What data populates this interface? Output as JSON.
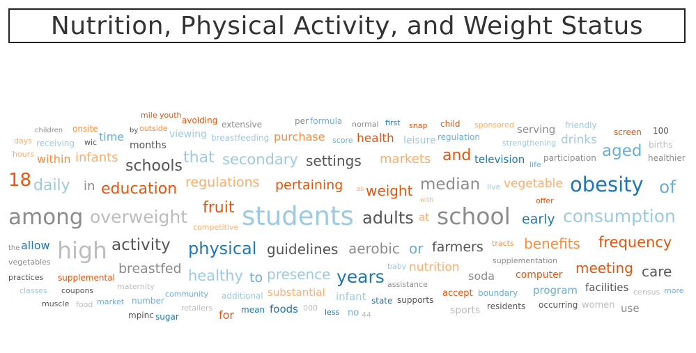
{
  "title": "Nutrition, Physical Activity, and Weight Status",
  "palette": {
    "dark_blue": "#1f77b4",
    "mid_blue": "#6baed6",
    "light_blue": "#9ecae1",
    "dark_orange": "#e6550d",
    "orange": "#fd8d3c",
    "light_orange": "#fdae6b",
    "dark_gray": "#555555",
    "gray": "#8c8c8c",
    "light_gray": "#bdbdbd"
  },
  "words": [
    {
      "text": "mile",
      "color": "dark_orange"
    },
    {
      "text": "youth",
      "color": "dark_orange"
    },
    {
      "text": "avoiding",
      "color": "dark_orange"
    },
    {
      "text": "extensive",
      "color": "gray"
    },
    {
      "text": "per",
      "color": "gray"
    },
    {
      "text": "formula",
      "color": "mid_blue"
    },
    {
      "text": "normal",
      "color": "gray"
    },
    {
      "text": "first",
      "color": "dark_blue"
    },
    {
      "text": "snap",
      "color": "dark_orange"
    },
    {
      "text": "child",
      "color": "dark_orange"
    },
    {
      "text": "sponsored",
      "color": "light_orange"
    },
    {
      "text": "friendly",
      "color": "light_blue"
    },
    {
      "text": "children",
      "color": "gray"
    },
    {
      "text": "onsite",
      "color": "orange"
    },
    {
      "text": "by",
      "color": "dark_gray"
    },
    {
      "text": "outside",
      "color": "orange"
    },
    {
      "text": "viewing",
      "color": "light_blue"
    },
    {
      "text": "breastfeeding",
      "color": "light_blue"
    },
    {
      "text": "purchase",
      "color": "orange"
    },
    {
      "text": "score",
      "color": "mid_blue"
    },
    {
      "text": "health",
      "color": "dark_orange"
    },
    {
      "text": "leisure",
      "color": "light_blue"
    },
    {
      "text": "regulation",
      "color": "mid_blue"
    },
    {
      "text": "serving",
      "color": "gray"
    },
    {
      "text": "screen",
      "color": "dark_orange"
    },
    {
      "text": "100",
      "color": "dark_gray"
    },
    {
      "text": "days",
      "color": "light_orange"
    },
    {
      "text": "receiving",
      "color": "light_blue"
    },
    {
      "text": "wic",
      "color": "dark_gray"
    },
    {
      "text": "time",
      "color": "mid_blue"
    },
    {
      "text": "months",
      "color": "dark_gray"
    },
    {
      "text": "strengthening",
      "color": "light_blue"
    },
    {
      "text": "drinks",
      "color": "light_blue"
    },
    {
      "text": "births",
      "color": "light_gray"
    },
    {
      "text": "hours",
      "color": "light_orange"
    },
    {
      "text": "within",
      "color": "orange"
    },
    {
      "text": "infants",
      "color": "light_orange"
    },
    {
      "text": "that",
      "color": "light_blue"
    },
    {
      "text": "secondary",
      "color": "light_blue"
    },
    {
      "text": "settings",
      "color": "dark_gray"
    },
    {
      "text": "markets",
      "color": "light_orange"
    },
    {
      "text": "and",
      "color": "dark_orange"
    },
    {
      "text": "aged",
      "color": "mid_blue"
    },
    {
      "text": "participation",
      "color": "gray"
    },
    {
      "text": "healthier",
      "color": "gray"
    },
    {
      "text": "schools",
      "color": "dark_gray"
    },
    {
      "text": "television",
      "color": "dark_blue"
    },
    {
      "text": "life",
      "color": "mid_blue"
    },
    {
      "text": "18",
      "color": "dark_orange"
    },
    {
      "text": "daily",
      "color": "light_blue"
    },
    {
      "text": "in",
      "color": "gray"
    },
    {
      "text": "education",
      "color": "dark_orange"
    },
    {
      "text": "regulations",
      "color": "light_orange"
    },
    {
      "text": "pertaining",
      "color": "dark_orange"
    },
    {
      "text": "as",
      "color": "light_orange"
    },
    {
      "text": "weight",
      "color": "dark_orange"
    },
    {
      "text": "median",
      "color": "gray"
    },
    {
      "text": "live",
      "color": "light_blue"
    },
    {
      "text": "vegetable",
      "color": "light_orange"
    },
    {
      "text": "obesity",
      "color": "dark_blue"
    },
    {
      "text": "of",
      "color": "mid_blue"
    },
    {
      "text": "with",
      "color": "light_orange"
    },
    {
      "text": "offer",
      "color": "dark_orange"
    },
    {
      "text": "among",
      "color": "gray"
    },
    {
      "text": "overweight",
      "color": "light_gray"
    },
    {
      "text": "fruit",
      "color": "dark_orange"
    },
    {
      "text": "students",
      "color": "light_blue"
    },
    {
      "text": "adults",
      "color": "dark_gray"
    },
    {
      "text": "at",
      "color": "light_orange"
    },
    {
      "text": "school",
      "color": "gray"
    },
    {
      "text": "early",
      "color": "dark_blue"
    },
    {
      "text": "consumption",
      "color": "light_blue"
    },
    {
      "text": "competitive",
      "color": "light_orange"
    },
    {
      "text": "the",
      "color": "gray"
    },
    {
      "text": "allow",
      "color": "dark_blue"
    },
    {
      "text": "high",
      "color": "light_gray"
    },
    {
      "text": "activity",
      "color": "dark_gray"
    },
    {
      "text": "physical",
      "color": "dark_blue"
    },
    {
      "text": "guidelines",
      "color": "dark_gray"
    },
    {
      "text": "aerobic",
      "color": "gray"
    },
    {
      "text": "or",
      "color": "mid_blue"
    },
    {
      "text": "farmers",
      "color": "dark_gray"
    },
    {
      "text": "tracts",
      "color": "orange"
    },
    {
      "text": "benefits",
      "color": "orange"
    },
    {
      "text": "frequency",
      "color": "dark_orange"
    },
    {
      "text": "vegetables",
      "color": "gray"
    },
    {
      "text": "supplementation",
      "color": "gray"
    },
    {
      "text": "breastfed",
      "color": "gray"
    },
    {
      "text": "healthy",
      "color": "light_blue"
    },
    {
      "text": "to",
      "color": "mid_blue"
    },
    {
      "text": "presence",
      "color": "light_blue"
    },
    {
      "text": "years",
      "color": "dark_blue"
    },
    {
      "text": "baby",
      "color": "light_blue"
    },
    {
      "text": "nutrition",
      "color": "light_orange"
    },
    {
      "text": "soda",
      "color": "gray"
    },
    {
      "text": "computer",
      "color": "dark_orange"
    },
    {
      "text": "meeting",
      "color": "dark_orange"
    },
    {
      "text": "care",
      "color": "dark_gray"
    },
    {
      "text": "practices",
      "color": "dark_gray"
    },
    {
      "text": "supplemental",
      "color": "dark_orange"
    },
    {
      "text": "maternity",
      "color": "light_gray"
    },
    {
      "text": "substantial",
      "color": "light_orange"
    },
    {
      "text": "assistance",
      "color": "gray"
    },
    {
      "text": "accept",
      "color": "dark_orange"
    },
    {
      "text": "boundary",
      "color": "mid_blue"
    },
    {
      "text": "program",
      "color": "mid_blue"
    },
    {
      "text": "facilities",
      "color": "dark_gray"
    },
    {
      "text": "census",
      "color": "light_gray"
    },
    {
      "text": "more",
      "color": "mid_blue"
    },
    {
      "text": "classes",
      "color": "light_blue"
    },
    {
      "text": "coupons",
      "color": "dark_gray"
    },
    {
      "text": "community",
      "color": "mid_blue"
    },
    {
      "text": "additional",
      "color": "light_blue"
    },
    {
      "text": "infant",
      "color": "light_blue"
    },
    {
      "text": "state",
      "color": "dark_blue"
    },
    {
      "text": "supports",
      "color": "dark_gray"
    },
    {
      "text": "muscle",
      "color": "dark_gray"
    },
    {
      "text": "food",
      "color": "light_gray"
    },
    {
      "text": "market",
      "color": "mid_blue"
    },
    {
      "text": "number",
      "color": "mid_blue"
    },
    {
      "text": "retailers",
      "color": "light_gray"
    },
    {
      "text": "mean",
      "color": "dark_blue"
    },
    {
      "text": "foods",
      "color": "dark_blue"
    },
    {
      "text": "000",
      "color": "light_gray"
    },
    {
      "text": "residents",
      "color": "dark_gray"
    },
    {
      "text": "occurring",
      "color": "dark_gray"
    },
    {
      "text": "women",
      "color": "light_gray"
    },
    {
      "text": "use",
      "color": "gray"
    },
    {
      "text": "mpinc",
      "color": "dark_gray"
    },
    {
      "text": "sugar",
      "color": "dark_blue"
    },
    {
      "text": "for",
      "color": "dark_orange"
    },
    {
      "text": "less",
      "color": "dark_blue"
    },
    {
      "text": "no",
      "color": "mid_blue"
    },
    {
      "text": "44",
      "color": "light_gray"
    },
    {
      "text": "sports",
      "color": "light_gray"
    }
  ]
}
